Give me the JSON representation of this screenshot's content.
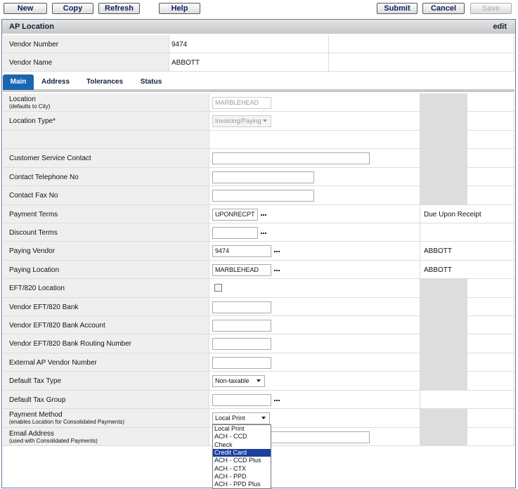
{
  "toolbar": {
    "left_buttons": [
      "New",
      "Copy",
      "Refresh",
      "Help"
    ],
    "right_buttons": [
      "Submit",
      "Cancel",
      "Save"
    ],
    "disabled": [
      "Save"
    ]
  },
  "header": {
    "title": "AP Location",
    "action": "edit"
  },
  "vendor": {
    "rows": [
      {
        "label": "Vendor Number",
        "value": "9474"
      },
      {
        "label": "Vendor Name",
        "value": "ABBOTT"
      }
    ]
  },
  "tabs": {
    "items": [
      "Main",
      "Address",
      "Tolerances",
      "Status"
    ],
    "active": 0
  },
  "form": {
    "rows": [
      {
        "label": "Location",
        "note": "(defaults to City)",
        "control": "input",
        "value": "MARBLEHEAD",
        "disabled": true
      },
      {
        "label": "Location Type*",
        "control": "select",
        "value": "Invoicing/Paying",
        "disabled": true
      },
      {
        "control": "none"
      },
      {
        "label": "Customer Service Contact",
        "control": "input"
      },
      {
        "label": "Contact Telephone No",
        "control": "input"
      },
      {
        "label": "Contact Fax No",
        "control": "input"
      },
      {
        "label": "Payment Terms",
        "control": "input",
        "value": "UPONRECPT",
        "lookup": true,
        "side": "Due Upon Receipt"
      },
      {
        "label": "Discount Terms",
        "control": "input",
        "lookup": true
      },
      {
        "label": "Paying Vendor",
        "control": "input",
        "value": "9474",
        "lookup": true,
        "side": "ABBOTT"
      },
      {
        "label": "Paying Location",
        "control": "input",
        "value": "MARBLEHEAD",
        "lookup": true,
        "side": "ABBOTT"
      },
      {
        "label": "EFT/820 Location",
        "control": "checkbox"
      },
      {
        "label": "Vendor EFT/820 Bank",
        "control": "input"
      },
      {
        "label": "Vendor EFT/820 Bank Account",
        "control": "input"
      },
      {
        "label": "Vendor EFT/820 Bank Routing Number",
        "control": "input"
      },
      {
        "label": "External AP Vendor Number",
        "control": "input"
      },
      {
        "label": "Default Tax Type",
        "control": "select",
        "value": "Non-taxable"
      },
      {
        "label": "Default Tax Group",
        "control": "input",
        "lookup": true
      },
      {
        "label": "Payment Method",
        "note": "(enables Location for Consolidated Payments)",
        "control": "select",
        "value": "Local Print"
      },
      {
        "label": "Email Address",
        "note": "(used with Consolidated Payments)",
        "control": "input"
      }
    ]
  },
  "dropdown": {
    "options": [
      "Local Print",
      "ACH - CCD",
      "Check",
      "Credit Card",
      "ACH - CCD Plus",
      "ACH - CTX",
      "ACH - PPD",
      "ACH - PPD Plus"
    ],
    "selected": 3
  }
}
